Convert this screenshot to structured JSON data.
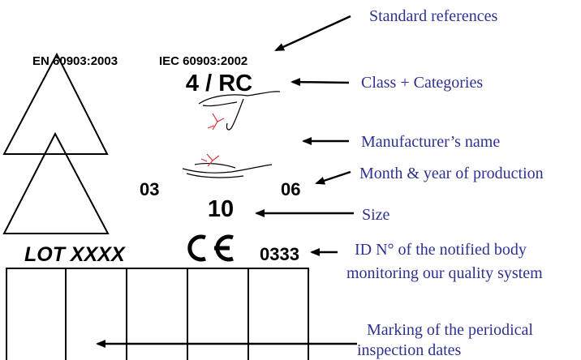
{
  "marking": {
    "standards": [
      "EN 60903:2003",
      "IEC 60903:2002"
    ],
    "class_category": "4 / RC",
    "month": "03",
    "year": "06",
    "size": "10",
    "lot": "LOT XXXX",
    "notified_body": "0333"
  },
  "annotations": {
    "standard_references": "Standard references",
    "class_categories": "Class + Categories",
    "manufacturer": "Manufacturer’s name",
    "production": "Month & year of production",
    "size": "Size",
    "notified_body": [
      "ID N° of the notified body",
      "monitoring our quality system"
    ],
    "inspection": [
      "Marking of the periodical",
      "inspection dates"
    ]
  }
}
